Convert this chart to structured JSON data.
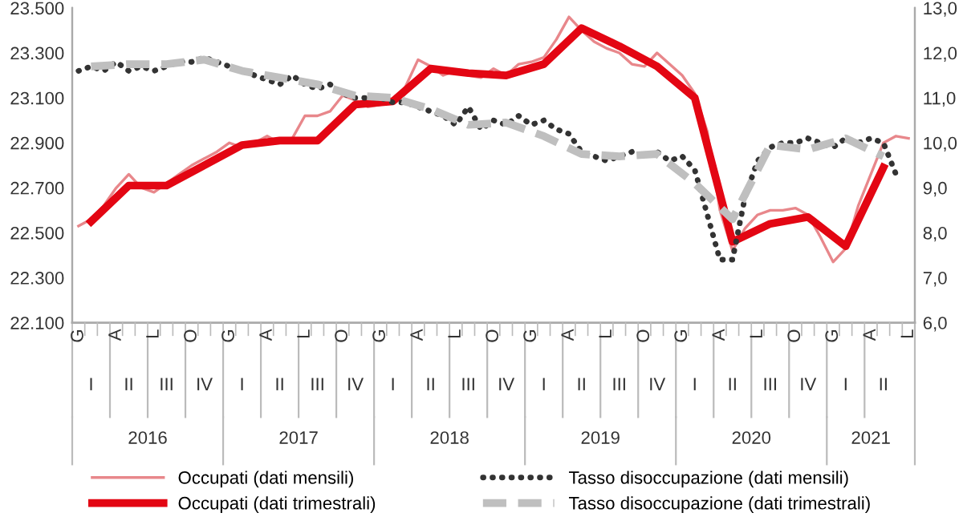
{
  "chart_data": {
    "type": "line",
    "categories": [
      "G",
      null,
      null,
      "A",
      null,
      null,
      "L",
      null,
      null,
      "O",
      null,
      null,
      "G",
      null,
      null,
      "A",
      null,
      null,
      "L",
      null,
      null,
      "O",
      null,
      null,
      "G",
      null,
      null,
      "A",
      null,
      null,
      "L",
      null,
      null,
      "O",
      null,
      null,
      "G",
      null,
      null,
      "A",
      null,
      null,
      "L",
      null,
      null,
      "O",
      null,
      null,
      "G",
      null,
      null,
      "A",
      null,
      null,
      "L",
      null,
      null,
      "O",
      null,
      null,
      "G",
      null,
      null,
      "A",
      null,
      null,
      "L"
    ],
    "series": [
      {
        "name": "Occupati (dati mensili)",
        "color": "#e8878b",
        "line_style": "solid",
        "values": [
          22530,
          22560,
          22620,
          22700,
          22760,
          22700,
          22680,
          22720,
          22760,
          22800,
          22830,
          22860,
          22900,
          22880,
          22900,
          22930,
          22900,
          22920,
          23020,
          23020,
          23040,
          23110,
          23090,
          23060,
          23070,
          23080,
          23150,
          23270,
          23240,
          23200,
          23220,
          23200,
          23190,
          23230,
          23200,
          23250,
          23260,
          23280,
          23360,
          23460,
          23400,
          23350,
          23320,
          23300,
          23250,
          23240,
          23300,
          23250,
          23200,
          23120,
          22950,
          22600,
          22420,
          22520,
          22580,
          22600,
          22600,
          22610,
          22580,
          22480,
          22370,
          22430,
          22620,
          22760,
          22900,
          22930,
          22920
        ]
      },
      {
        "name": "Occupati (dati trimestrali)",
        "color": "#e30613",
        "line_style": "solid",
        "values": [
          null,
          22550,
          null,
          null,
          22710,
          null,
          null,
          22710,
          null,
          null,
          22800,
          null,
          null,
          22890,
          null,
          null,
          22910,
          null,
          null,
          22910,
          null,
          null,
          23070,
          null,
          null,
          23085,
          null,
          null,
          23230,
          null,
          null,
          23210,
          null,
          null,
          23200,
          null,
          null,
          23250,
          null,
          null,
          23410,
          null,
          null,
          23330,
          null,
          null,
          23240,
          null,
          null,
          23100,
          null,
          null,
          22460,
          null,
          null,
          22540,
          null,
          null,
          22570,
          null,
          null,
          22440,
          null,
          null,
          22790,
          null,
          null
        ]
      },
      {
        "name": "Tasso disoccupazione (dati mensili)",
        "color": "#333333",
        "axis": "y2",
        "line_style": "dotted",
        "values": [
          11.6,
          11.7,
          11.6,
          11.8,
          11.6,
          11.7,
          11.6,
          11.7,
          11.8,
          11.8,
          11.9,
          11.8,
          11.7,
          11.6,
          11.5,
          11.4,
          11.3,
          11.5,
          11.3,
          11.2,
          11.3,
          11.1,
          11.0,
          11.0,
          11.0,
          10.9,
          10.9,
          10.8,
          10.7,
          10.6,
          10.4,
          10.8,
          10.3,
          10.5,
          10.4,
          10.6,
          10.4,
          10.5,
          10.3,
          10.2,
          9.8,
          9.7,
          9.6,
          9.7,
          9.8,
          9.7,
          9.8,
          9.6,
          9.7,
          9.4,
          8.4,
          7.4,
          7.4,
          8.8,
          9.6,
          9.9,
          10.0,
          10.0,
          10.1,
          10.0,
          9.9,
          10.1,
          10.0,
          10.1,
          10.0,
          9.3,
          null
        ]
      },
      {
        "name": "Tasso disoccupazione (dati trimestrali)",
        "color": "#bfbfbf",
        "axis": "y2",
        "line_style": "dashed",
        "values": [
          null,
          11.7,
          null,
          null,
          11.75,
          null,
          null,
          11.75,
          null,
          null,
          11.85,
          null,
          null,
          11.6,
          null,
          null,
          11.45,
          null,
          null,
          11.3,
          null,
          null,
          11.05,
          null,
          null,
          11.0,
          null,
          null,
          10.75,
          null,
          null,
          10.4,
          null,
          null,
          10.45,
          null,
          null,
          10.15,
          null,
          null,
          9.75,
          null,
          null,
          9.7,
          null,
          null,
          9.75,
          null,
          null,
          9.1,
          null,
          null,
          8.3,
          null,
          null,
          9.95,
          null,
          null,
          9.85,
          null,
          null,
          10.1,
          null,
          null,
          9.7,
          null,
          null
        ]
      }
    ],
    "ylim": [
      22100,
      23500
    ],
    "yticks": [
      {
        "value": 22100,
        "label": "22.100"
      },
      {
        "value": 22300,
        "label": "22.300"
      },
      {
        "value": 22500,
        "label": "22.500"
      },
      {
        "value": 22700,
        "label": "22.700"
      },
      {
        "value": 22900,
        "label": "22.900"
      },
      {
        "value": 23100,
        "label": "23.100"
      },
      {
        "value": 23300,
        "label": "23.300"
      },
      {
        "value": 23500,
        "label": "23.500"
      }
    ],
    "y2lim": [
      6,
      13
    ],
    "y2ticks": [
      {
        "value": 6,
        "label": "6,0"
      },
      {
        "value": 7,
        "label": "7,0"
      },
      {
        "value": 8,
        "label": "8,0"
      },
      {
        "value": 9,
        "label": "9,0"
      },
      {
        "value": 10,
        "label": "10,0"
      },
      {
        "value": 11,
        "label": "11,0"
      },
      {
        "value": 12,
        "label": "12,0"
      },
      {
        "value": 13,
        "label": "13,0"
      }
    ],
    "annotations": [
      "I",
      "II",
      "III",
      "IV",
      "I",
      "II",
      "III",
      "IV",
      "I",
      "II",
      "III",
      "IV",
      "I",
      "II",
      "III",
      "IV",
      "I",
      "II",
      "III",
      "IV",
      "I",
      "II",
      "2016",
      "2017",
      "2018",
      "2019",
      "2020",
      "2021"
    ],
    "grid": false,
    "legend": "bottom"
  }
}
